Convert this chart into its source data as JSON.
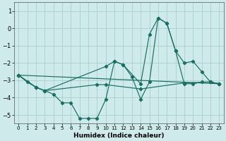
{
  "xlabel": "Humidex (Indice chaleur)",
  "ylabel": "",
  "background_color": "#ceeaea",
  "grid_color": "#aacece",
  "line_color": "#1a6e64",
  "xlim": [
    -0.5,
    23.5
  ],
  "ylim": [
    -5.5,
    1.5
  ],
  "yticks": [
    -5,
    -4,
    -3,
    -2,
    -1,
    0,
    1
  ],
  "xticks": [
    0,
    1,
    2,
    3,
    4,
    5,
    6,
    7,
    8,
    9,
    10,
    11,
    12,
    13,
    14,
    15,
    16,
    17,
    18,
    19,
    20,
    21,
    22,
    23
  ],
  "series": [
    {
      "x": [
        0,
        1,
        2,
        3,
        4,
        5,
        6,
        7,
        8,
        9,
        10,
        11,
        12,
        13,
        14,
        15,
        16,
        17,
        18,
        19,
        20,
        21,
        22,
        23
      ],
      "y": [
        -2.7,
        -3.1,
        -3.4,
        -3.6,
        -3.8,
        -4.3,
        -4.3,
        -5.2,
        -5.2,
        -5.2,
        -4.1,
        -1.9,
        -2.1,
        -2.8,
        -4.1,
        -3.1,
        0.6,
        0.3,
        -1.3,
        -2.0,
        -1.9,
        -2.5,
        -3.1,
        -3.2
      ]
    },
    {
      "x": [
        0,
        23
      ],
      "y": [
        -2.7,
        -3.2
      ]
    },
    {
      "x": [
        0,
        2,
        3,
        10,
        11,
        12,
        14,
        15,
        16,
        17,
        18,
        19,
        20,
        21,
        22,
        23
      ],
      "y": [
        -2.7,
        -3.4,
        -3.6,
        -2.2,
        -1.9,
        -2.1,
        -3.2,
        -0.35,
        0.6,
        0.3,
        -1.3,
        -3.2,
        -3.2,
        -3.1,
        -3.1,
        -3.2
      ]
    },
    {
      "x": [
        0,
        2,
        3,
        9,
        10,
        14,
        19,
        22,
        23
      ],
      "y": [
        -2.7,
        -3.4,
        -3.6,
        -3.25,
        -3.25,
        -3.5,
        -3.15,
        -3.1,
        -3.2
      ]
    }
  ]
}
